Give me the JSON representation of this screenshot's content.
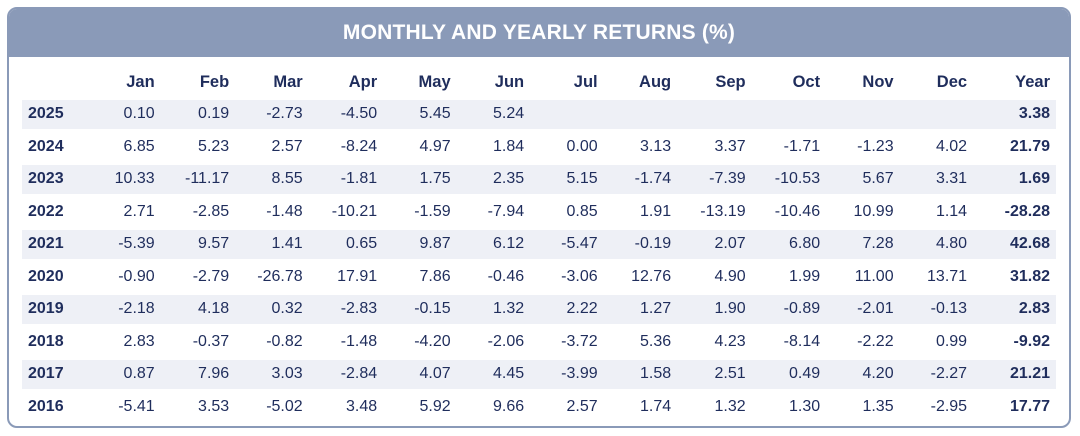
{
  "title": "MONTHLY AND YEARLY RETURNS (%)",
  "chart_data": {
    "type": "table",
    "title": "MONTHLY AND YEARLY RETURNS (%)",
    "columns": [
      "",
      "Jan",
      "Feb",
      "Mar",
      "Apr",
      "May",
      "Jun",
      "Jul",
      "Aug",
      "Sep",
      "Oct",
      "Nov",
      "Dec",
      "Year"
    ],
    "rows": [
      {
        "year": "2025",
        "months": [
          "0.10",
          "0.19",
          "-2.73",
          "-4.50",
          "5.45",
          "5.24",
          "",
          "",
          "",
          "",
          "",
          ""
        ],
        "total": "3.38"
      },
      {
        "year": "2024",
        "months": [
          "6.85",
          "5.23",
          "2.57",
          "-8.24",
          "4.97",
          "1.84",
          "0.00",
          "3.13",
          "3.37",
          "-1.71",
          "-1.23",
          "4.02"
        ],
        "total": "21.79"
      },
      {
        "year": "2023",
        "months": [
          "10.33",
          "-11.17",
          "8.55",
          "-1.81",
          "1.75",
          "2.35",
          "5.15",
          "-1.74",
          "-7.39",
          "-10.53",
          "5.67",
          "3.31"
        ],
        "total": "1.69"
      },
      {
        "year": "2022",
        "months": [
          "2.71",
          "-2.85",
          "-1.48",
          "-10.21",
          "-1.59",
          "-7.94",
          "0.85",
          "1.91",
          "-13.19",
          "-10.46",
          "10.99",
          "1.14"
        ],
        "total": "-28.28"
      },
      {
        "year": "2021",
        "months": [
          "-5.39",
          "9.57",
          "1.41",
          "0.65",
          "9.87",
          "6.12",
          "-5.47",
          "-0.19",
          "2.07",
          "6.80",
          "7.28",
          "4.80"
        ],
        "total": "42.68"
      },
      {
        "year": "2020",
        "months": [
          "-0.90",
          "-2.79",
          "-26.78",
          "17.91",
          "7.86",
          "-0.46",
          "-3.06",
          "12.76",
          "4.90",
          "1.99",
          "11.00",
          "13.71"
        ],
        "total": "31.82"
      },
      {
        "year": "2019",
        "months": [
          "-2.18",
          "4.18",
          "0.32",
          "-2.83",
          "-0.15",
          "1.32",
          "2.22",
          "1.27",
          "1.90",
          "-0.89",
          "-2.01",
          "-0.13"
        ],
        "total": "2.83"
      },
      {
        "year": "2018",
        "months": [
          "2.83",
          "-0.37",
          "-0.82",
          "-1.48",
          "-4.20",
          "-2.06",
          "-3.72",
          "5.36",
          "4.23",
          "-8.14",
          "-2.22",
          "0.99"
        ],
        "total": "-9.92"
      },
      {
        "year": "2017",
        "months": [
          "0.87",
          "7.96",
          "3.03",
          "-2.84",
          "4.07",
          "4.45",
          "-3.99",
          "1.58",
          "2.51",
          "0.49",
          "4.20",
          "-2.27"
        ],
        "total": "21.21"
      },
      {
        "year": "2016",
        "months": [
          "-5.41",
          "3.53",
          "-5.02",
          "3.48",
          "5.92",
          "9.66",
          "2.57",
          "1.74",
          "1.32",
          "1.30",
          "1.35",
          "-2.95"
        ],
        "total": "17.77"
      }
    ]
  }
}
